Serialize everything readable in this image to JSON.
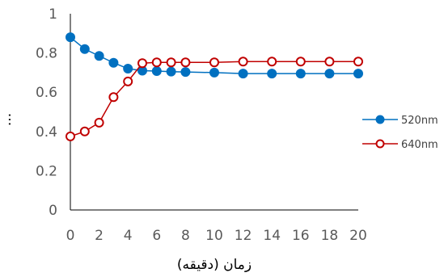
{
  "chart_data": {
    "type": "line",
    "title": "",
    "xlabel": "زمان (دقیقه)",
    "ylabel": "...",
    "x_ticks": [
      "0",
      "2",
      "4",
      "6",
      "8",
      "10",
      "12",
      "14",
      "16",
      "18",
      "20"
    ],
    "y_ticks": [
      "0",
      "0.2",
      "0.4",
      "0.6",
      "0.8",
      "1"
    ],
    "ylim": [
      0,
      1
    ],
    "grid": false,
    "legend_position": "right",
    "series": [
      {
        "name": "520nm",
        "color": "#0070C0",
        "marker": "filled-circle",
        "points": [
          [
            0,
            0.88
          ],
          [
            1,
            0.82
          ],
          [
            2,
            0.785
          ],
          [
            3,
            0.75
          ],
          [
            4,
            0.72
          ],
          [
            5,
            0.71
          ],
          [
            6,
            0.708
          ],
          [
            7,
            0.705
          ],
          [
            8,
            0.703
          ],
          [
            10,
            0.7
          ],
          [
            12,
            0.695
          ],
          [
            14,
            0.695
          ],
          [
            16,
            0.695
          ],
          [
            18,
            0.695
          ],
          [
            20,
            0.695
          ]
        ]
      },
      {
        "name": "640nm",
        "color": "#C00000",
        "marker": "open-circle",
        "points": [
          [
            0,
            0.375
          ],
          [
            1,
            0.4
          ],
          [
            2,
            0.445
          ],
          [
            3,
            0.575
          ],
          [
            4,
            0.655
          ],
          [
            5,
            0.748
          ],
          [
            6,
            0.752
          ],
          [
            7,
            0.752
          ],
          [
            8,
            0.752
          ],
          [
            10,
            0.752
          ],
          [
            12,
            0.756
          ],
          [
            14,
            0.756
          ],
          [
            16,
            0.756
          ],
          [
            18,
            0.756
          ],
          [
            20,
            0.756
          ]
        ]
      }
    ]
  }
}
